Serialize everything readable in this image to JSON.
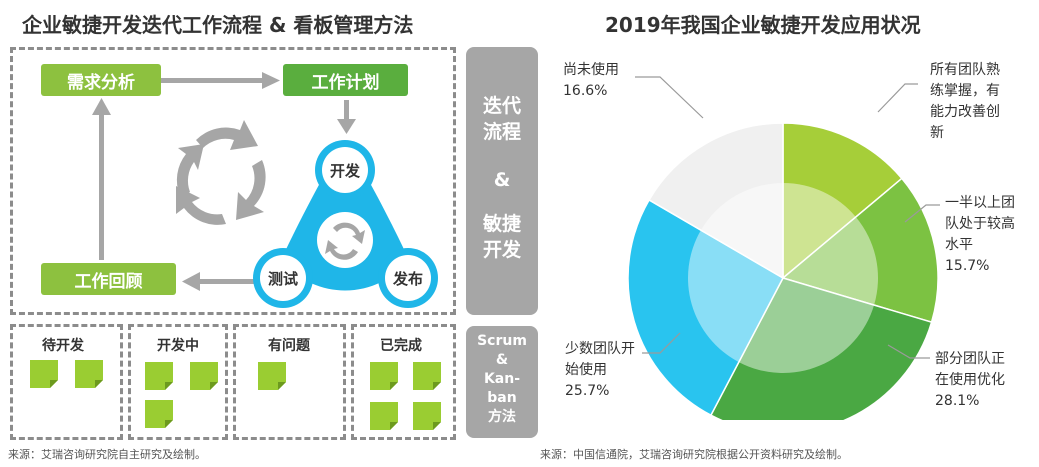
{
  "left": {
    "title": "企业敏捷开发迭代工作流程 & 看板管理方法",
    "boxes": {
      "requirements": "需求分析",
      "plan": "工作计划",
      "review": "工作回顾"
    },
    "cycle": {
      "develop": "开发",
      "test": "测试",
      "release": "发布"
    },
    "side_iter": [
      "迭代",
      "流程",
      "&",
      "敏捷",
      "开发"
    ],
    "side_scrum": [
      "Scrum",
      "&",
      "Kan-",
      "ban",
      "方法"
    ],
    "kanban_columns": [
      "待开发",
      "开发中",
      "有问题",
      "已完成"
    ],
    "kanban_note_counts": [
      2,
      3,
      1,
      4
    ],
    "note_color": "#9acd32",
    "source": "来源：艾瑞咨询研究院自主研究及绘制。"
  },
  "right": {
    "title": "2019年我国企业敏捷开发应用状况",
    "source": "来源：中国信通院，艾瑞咨询研究院根据公开资料研究及绘制。"
  },
  "chart_data": {
    "type": "pie",
    "title": "2019年我国企业敏捷开发应用状况",
    "slices": [
      {
        "label": "所有团队熟练掌握，有能力改善创新",
        "value": null,
        "color": "#a6ce39"
      },
      {
        "label": "一半以上团队处于较高水平",
        "value": 15.7,
        "color": "#7cc242"
      },
      {
        "label": "部分团队正在使用优化",
        "value": 28.1,
        "color": "#4aa843"
      },
      {
        "label": "少数团队开始使用",
        "value": 25.7,
        "color": "#29c4ef"
      },
      {
        "label": "尚未使用",
        "value": 16.6,
        "color": "#f0f0f0"
      }
    ],
    "label_lines": {
      "s0": [
        "所有团队熟",
        "练掌握，有",
        "能力改善创",
        "新"
      ],
      "s1": [
        "一半以上团",
        "队处于较高",
        "水平",
        "15.7%"
      ],
      "s2": [
        "部分团队正",
        "在使用优化",
        "28.1%"
      ],
      "s3": [
        "少数团队开",
        "始使用",
        "25.7%"
      ],
      "s4": [
        "尚未使用",
        "16.6%"
      ]
    }
  }
}
